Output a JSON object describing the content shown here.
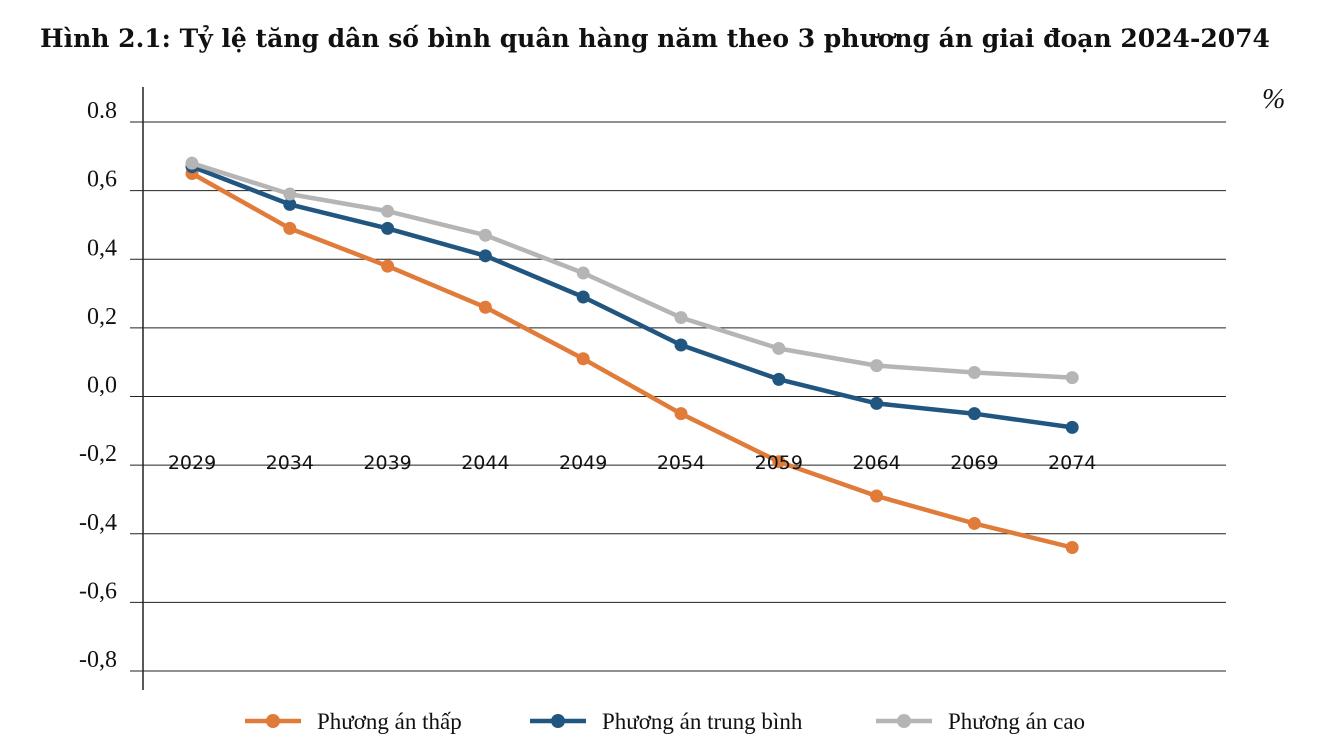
{
  "chart_data": {
    "type": "line",
    "title": "Hình 2.1: Tỷ lệ tăng dân số bình quân hàng năm theo 3 phương án giai đoạn 2024-2074",
    "unit": "%",
    "categories": [
      "2029",
      "2034",
      "2039",
      "2044",
      "2049",
      "2054",
      "2059",
      "2064",
      "2069",
      "2074"
    ],
    "y_tick_labels": [
      "0.8",
      "0,6",
      "0,4",
      "0,2",
      "0,0",
      "-0,2",
      "-0,4",
      "-0,6",
      "-0,8"
    ],
    "y_tick_values": [
      0.8,
      0.6,
      0.4,
      0.2,
      0.0,
      -0.2,
      -0.4,
      -0.6,
      -0.8
    ],
    "ylim": [
      -0.8,
      0.8
    ],
    "grid": true,
    "legend_position": "bottom",
    "series": [
      {
        "name": "Phương án thấp",
        "color": "#E07B39",
        "values": [
          0.65,
          0.49,
          0.38,
          0.26,
          0.11,
          -0.05,
          -0.19,
          -0.29,
          -0.37,
          -0.44
        ]
      },
      {
        "name": "Phương án trung bình",
        "color": "#215680",
        "values": [
          0.67,
          0.56,
          0.49,
          0.41,
          0.29,
          0.15,
          0.05,
          -0.02,
          -0.05,
          -0.09
        ]
      },
      {
        "name": "Phương án cao",
        "color": "#B5B5B5",
        "values": [
          0.68,
          0.59,
          0.54,
          0.47,
          0.36,
          0.23,
          0.14,
          0.09,
          0.07,
          0.055
        ]
      }
    ]
  }
}
